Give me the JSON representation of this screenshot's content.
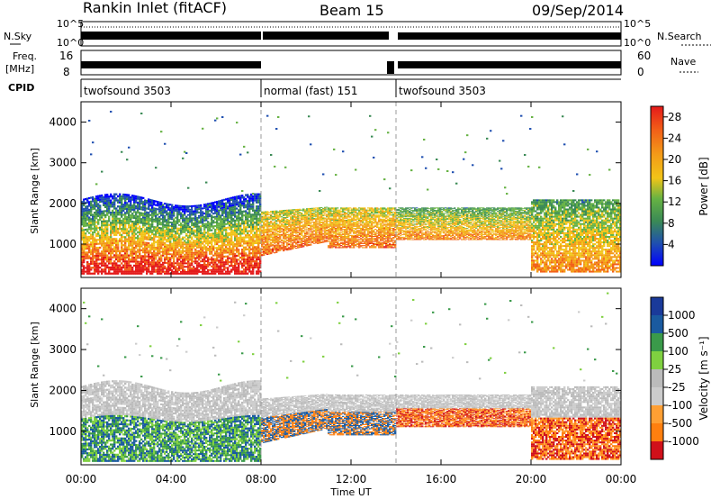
{
  "header": {
    "station": "Rankin Inlet (fitACF)",
    "beam": "Beam 15",
    "date": "09/Sep/2014"
  },
  "summary": {
    "nsky_label": "N.Sky",
    "nsearch_label": "N.Search",
    "freq_label_1": "Freq.",
    "freq_label_2": "[MHz]",
    "nave_label": "Nave",
    "cpid_label": "CPID",
    "count_axis_ticks": [
      "10^5",
      "10^0"
    ],
    "freq_axis_ticks": [
      "16",
      "8"
    ],
    "nave_axis_ticks": [
      "60",
      "0"
    ]
  },
  "cpid_segments": [
    {
      "label": "twofsound 3503",
      "start": 0,
      "end": 8
    },
    {
      "label": "normal (fast) 151",
      "start": 8,
      "end": 14
    },
    {
      "label": "twofsound 3503",
      "start": 14,
      "end": 24
    }
  ],
  "colors": {
    "power": [
      "#0000ff",
      "#1f4fb0",
      "#3a8a55",
      "#66b243",
      "#f2c418",
      "#f39a18",
      "#f26018",
      "#e41a1a"
    ],
    "velocity": [
      "#d0101a",
      "#ff7f0f",
      "#ff9f33",
      "#cccccc",
      "#bbbbbb",
      "#7fd040",
      "#3a9a4a",
      "#1a5aa0",
      "#1a3a9a"
    ]
  },
  "chart_data": [
    {
      "type": "heatmap",
      "title": "Power",
      "ylabel": "Slant Range [km]",
      "xlabel": "Time UT",
      "x_unit": "hours UT",
      "ylim": [
        180,
        4500
      ],
      "xlim": [
        0,
        24
      ],
      "y_ticks": [
        "1000",
        "2000",
        "3000",
        "4000"
      ],
      "x_ticks": [
        "00:00",
        "04:00",
        "08:00",
        "12:00",
        "16:00",
        "20:00",
        "00:00"
      ],
      "colorbar_label": "Power [dB]",
      "colorbar_ticks": [
        "4",
        "8",
        "12",
        "16",
        "20",
        "24",
        "28"
      ],
      "colorbar_range": [
        0,
        30
      ]
    },
    {
      "type": "heatmap",
      "title": "Velocity",
      "ylabel": "Slant Range [km]",
      "xlabel": "Time UT",
      "x_unit": "hours UT",
      "ylim": [
        180,
        4500
      ],
      "xlim": [
        0,
        24
      ],
      "y_ticks": [
        "1000",
        "2000",
        "3000",
        "4000"
      ],
      "x_ticks": [
        "00:00",
        "04:00",
        "08:00",
        "12:00",
        "16:00",
        "20:00",
        "00:00"
      ],
      "colorbar_label": "Velocity [m s⁻¹]",
      "colorbar_ticks": [
        "1000",
        "500",
        "100",
        "25",
        "-25",
        "-100",
        "-500",
        "-1000"
      ]
    }
  ]
}
